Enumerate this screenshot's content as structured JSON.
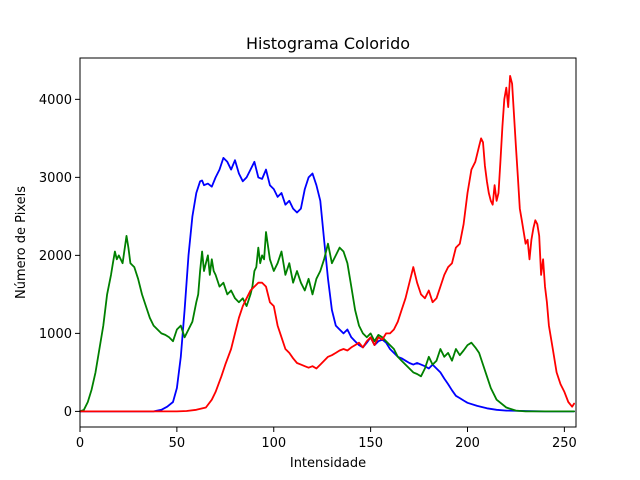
{
  "chart_data": {
    "type": "line",
    "title": "Histograma Colorido",
    "xlabel": "Intensidade",
    "ylabel": "Número de Pixels",
    "xlim": [
      0,
      256
    ],
    "ylim": [
      -200,
      4530
    ],
    "xticks": [
      0,
      50,
      100,
      150,
      200,
      250
    ],
    "yticks": [
      0,
      1000,
      2000,
      3000,
      4000
    ],
    "grid": false,
    "series": [
      {
        "color": "#0000ff",
        "x": [
          0,
          10,
          20,
          30,
          38,
          42,
          45,
          48,
          50,
          52,
          54,
          56,
          58,
          60,
          62,
          63,
          64,
          66,
          68,
          70,
          72,
          74,
          76,
          78,
          80,
          82,
          84,
          86,
          88,
          90,
          92,
          94,
          96,
          98,
          100,
          102,
          104,
          106,
          108,
          110,
          112,
          114,
          116,
          118,
          120,
          122,
          124,
          126,
          128,
          130,
          132,
          134,
          136,
          138,
          140,
          142,
          144,
          146,
          148,
          150,
          152,
          154,
          156,
          158,
          160,
          162,
          164,
          166,
          168,
          170,
          172,
          174,
          176,
          178,
          180,
          182,
          184,
          186,
          188,
          190,
          192,
          194,
          196,
          198,
          200,
          205,
          210,
          215,
          220,
          230,
          240,
          250,
          255
        ],
        "y": [
          0,
          0,
          0,
          0,
          0,
          20,
          60,
          120,
          300,
          700,
          1300,
          2000,
          2500,
          2800,
          2950,
          2960,
          2900,
          2920,
          2880,
          3000,
          3100,
          3250,
          3200,
          3100,
          3220,
          3050,
          2950,
          3000,
          3100,
          3200,
          3000,
          2980,
          3100,
          2900,
          2850,
          2750,
          2800,
          2650,
          2700,
          2600,
          2550,
          2600,
          2850,
          3000,
          3050,
          2900,
          2700,
          2200,
          1700,
          1300,
          1100,
          1050,
          1000,
          1050,
          950,
          900,
          850,
          820,
          880,
          950,
          850,
          900,
          920,
          880,
          800,
          750,
          700,
          680,
          650,
          620,
          600,
          620,
          600,
          580,
          550,
          600,
          550,
          500,
          420,
          350,
          270,
          200,
          170,
          140,
          110,
          70,
          40,
          20,
          10,
          5,
          0,
          0,
          0
        ]
      },
      {
        "color": "#008000",
        "x": [
          0,
          2,
          4,
          6,
          8,
          10,
          12,
          14,
          16,
          17,
          18,
          19,
          20,
          22,
          24,
          25,
          26,
          28,
          30,
          32,
          34,
          36,
          38,
          40,
          42,
          44,
          46,
          48,
          50,
          52,
          54,
          56,
          58,
          60,
          61,
          62,
          63,
          64,
          65,
          66,
          67,
          68,
          69,
          70,
          72,
          74,
          76,
          78,
          80,
          82,
          84,
          86,
          88,
          89,
          90,
          91,
          92,
          93,
          94,
          95,
          96,
          98,
          100,
          102,
          104,
          106,
          108,
          110,
          112,
          114,
          116,
          118,
          120,
          122,
          124,
          126,
          128,
          130,
          132,
          134,
          136,
          138,
          140,
          142,
          144,
          146,
          148,
          150,
          152,
          154,
          156,
          158,
          160,
          162,
          164,
          166,
          168,
          170,
          172,
          174,
          176,
          178,
          180,
          182,
          184,
          186,
          188,
          190,
          192,
          194,
          196,
          198,
          200,
          202,
          204,
          206,
          208,
          210,
          212,
          215,
          220,
          225,
          230,
          240,
          250,
          255
        ],
        "y": [
          0,
          20,
          120,
          280,
          500,
          800,
          1100,
          1500,
          1750,
          1900,
          2050,
          1950,
          2000,
          1900,
          2250,
          2100,
          1900,
          1850,
          1700,
          1500,
          1350,
          1200,
          1100,
          1050,
          1000,
          980,
          950,
          900,
          1050,
          1100,
          950,
          1050,
          1150,
          1400,
          1500,
          1800,
          2050,
          1800,
          1900,
          2000,
          1750,
          1950,
          1800,
          1750,
          1600,
          1650,
          1500,
          1550,
          1450,
          1400,
          1450,
          1350,
          1500,
          1600,
          1800,
          1850,
          2100,
          1900,
          2000,
          1950,
          2300,
          1950,
          1800,
          1900,
          2050,
          1750,
          1900,
          1650,
          1800,
          1650,
          1550,
          1700,
          1500,
          1700,
          1800,
          1950,
          2150,
          1900,
          2000,
          2100,
          2050,
          1900,
          1600,
          1300,
          1100,
          1000,
          950,
          1000,
          900,
          980,
          950,
          900,
          850,
          800,
          700,
          650,
          600,
          550,
          500,
          480,
          450,
          550,
          700,
          600,
          650,
          800,
          700,
          750,
          650,
          800,
          720,
          780,
          850,
          880,
          820,
          750,
          600,
          450,
          300,
          150,
          50,
          10,
          0,
          0,
          0,
          0
        ]
      },
      {
        "color": "#ff0000",
        "x": [
          0,
          20,
          40,
          50,
          55,
          60,
          65,
          68,
          70,
          73,
          75,
          78,
          80,
          82,
          84,
          86,
          88,
          90,
          92,
          94,
          96,
          98,
          100,
          102,
          104,
          106,
          108,
          110,
          112,
          114,
          116,
          118,
          120,
          122,
          124,
          126,
          128,
          130,
          132,
          134,
          136,
          138,
          140,
          142,
          144,
          146,
          148,
          150,
          152,
          154,
          156,
          158,
          160,
          162,
          164,
          166,
          168,
          170,
          172,
          174,
          176,
          178,
          180,
          182,
          184,
          186,
          188,
          190,
          192,
          194,
          196,
          198,
          200,
          202,
          204,
          206,
          207,
          208,
          209,
          210,
          211,
          212,
          213,
          214,
          215,
          216,
          217,
          218,
          219,
          220,
          221,
          222,
          223,
          224,
          225,
          226,
          227,
          228,
          229,
          230,
          231,
          232,
          233,
          234,
          235,
          236,
          237,
          238,
          239,
          240,
          241,
          242,
          244,
          246,
          248,
          250,
          252,
          254,
          255
        ],
        "y": [
          0,
          0,
          0,
          0,
          5,
          20,
          50,
          150,
          250,
          450,
          600,
          800,
          1000,
          1200,
          1350,
          1450,
          1550,
          1600,
          1650,
          1650,
          1600,
          1400,
          1350,
          1100,
          950,
          800,
          750,
          680,
          620,
          600,
          580,
          560,
          580,
          550,
          600,
          650,
          700,
          720,
          750,
          780,
          800,
          780,
          820,
          850,
          880,
          820,
          900,
          950,
          850,
          950,
          920,
          1000,
          1000,
          1050,
          1150,
          1300,
          1450,
          1650,
          1850,
          1650,
          1500,
          1450,
          1550,
          1400,
          1450,
          1600,
          1750,
          1850,
          1900,
          2100,
          2150,
          2400,
          2800,
          3100,
          3200,
          3400,
          3500,
          3450,
          3150,
          2950,
          2800,
          2700,
          2650,
          2900,
          2700,
          2800,
          3200,
          3650,
          4000,
          4150,
          3900,
          4300,
          4200,
          3800,
          3400,
          3000,
          2600,
          2450,
          2300,
          2150,
          2200,
          1950,
          2200,
          2350,
          2450,
          2400,
          2250,
          1750,
          1950,
          1600,
          1400,
          1100,
          800,
          500,
          350,
          250,
          120,
          60,
          100
        ]
      }
    ]
  }
}
